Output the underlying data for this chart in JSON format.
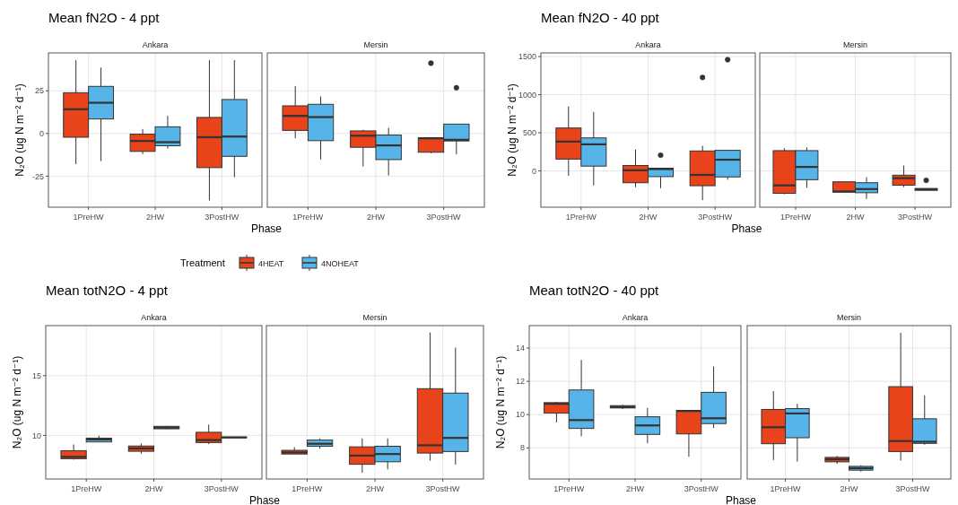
{
  "chart_data": [
    {
      "type": "box",
      "title": "Mean fN2O - 4 ppt",
      "subtitle": "Ankara",
      "xlabel": "Phase",
      "ylabel": "N₂O (ug N m⁻² d⁻¹)",
      "legend_title": "Treatment",
      "legend": "bottom",
      "grid": true,
      "categories": [
        "1PreHW",
        "2HW",
        "3PostHW"
      ],
      "ylim": [
        -43.2,
        47.2
      ],
      "yticks": [
        -25,
        0,
        25
      ],
      "series": [
        {
          "name": "4HEAT",
          "color": "#e8431a",
          "boxes": [
            {
              "low": -18.0,
              "q1": -2.2,
              "median": 14.2,
              "q3": 23.9,
              "high": 43.0
            },
            {
              "low": -12.1,
              "q1": -10.5,
              "median": -4.4,
              "q3": -0.4,
              "high": 2.6
            },
            {
              "low": -39.3,
              "q1": -20.0,
              "median": -2.2,
              "q3": 9.4,
              "high": 43.0
            }
          ]
        },
        {
          "name": "4NOHEAT",
          "color": "#56b4e9",
          "boxes": [
            {
              "low": -16.2,
              "q1": 8.5,
              "median": 18.0,
              "q3": 27.6,
              "high": 38.6
            },
            {
              "low": -8.8,
              "q1": -7.2,
              "median": -5.1,
              "q3": 3.9,
              "high": 10.3
            },
            {
              "low": -25.6,
              "q1": -13.4,
              "median": -1.8,
              "q3": 19.9,
              "high": 43.0
            }
          ]
        }
      ]
    },
    {
      "type": "box",
      "subtitle": "Mersin",
      "grid": true,
      "tick_labels": "x",
      "categories": [
        "1PreHW",
        "2HW",
        "3PostHW"
      ],
      "ylim": [
        -43.2,
        47.2
      ],
      "yticks": [
        -25,
        0,
        25
      ],
      "series": [
        {
          "color": "#e8431a",
          "boxes": [
            {
              "low": -2.8,
              "q1": 1.8,
              "median": 10.3,
              "q3": 16.2,
              "high": 27.8
            },
            {
              "low": -19.3,
              "q1": -8.1,
              "median": -1.3,
              "q3": 1.5,
              "high": 2.2
            },
            {
              "low": -11.6,
              "q1": -11.0,
              "median": -2.8,
              "q3": -2.6,
              "high": -2.6,
              "outliers": [
                41.2
              ]
            }
          ]
        },
        {
          "color": "#56b4e9",
          "boxes": [
            {
              "low": -15.3,
              "q1": -4.2,
              "median": 9.6,
              "q3": 17.1,
              "high": 21.7
            },
            {
              "low": -24.6,
              "q1": -15.3,
              "median": -7.0,
              "q3": -0.9,
              "high": 3.3
            },
            {
              "low": -12.1,
              "q1": -4.4,
              "median": -3.7,
              "q3": 5.5,
              "high": 5.5,
              "outliers": [
                26.8
              ]
            }
          ]
        }
      ]
    },
    {
      "type": "box",
      "title": "Mean fN2O - 40 ppt",
      "subtitle": "Ankara",
      "xlabel": "Phase",
      "ylabel": "N₂O (ug N m⁻² d⁻¹)",
      "grid": true,
      "categories": [
        "1PreHW",
        "2HW",
        "3PostHW"
      ],
      "ylim": [
        -476,
        1548
      ],
      "yticks": [
        0,
        500,
        1000,
        1500
      ],
      "series": [
        {
          "color": "#e8431a",
          "boxes": [
            {
              "low": -63,
              "q1": 155,
              "median": 385,
              "q3": 563,
              "high": 845
            },
            {
              "low": -214,
              "q1": -155,
              "median": 8,
              "q3": 71,
              "high": 282
            },
            {
              "low": -385,
              "q1": -194,
              "median": -52,
              "q3": 262,
              "high": 329,
              "outliers": [
                1226
              ]
            }
          ]
        },
        {
          "color": "#56b4e9",
          "boxes": [
            {
              "low": -190,
              "q1": 63,
              "median": 349,
              "q3": 433,
              "high": 774
            },
            {
              "low": -226,
              "q1": -75,
              "median": 24,
              "q3": 36,
              "high": 36,
              "outliers": [
                206
              ]
            },
            {
              "low": -115,
              "q1": -79,
              "median": 147,
              "q3": 270,
              "high": 270,
              "outliers": [
                1460
              ]
            }
          ]
        }
      ]
    },
    {
      "type": "box",
      "subtitle": "Mersin",
      "grid": true,
      "tick_labels": "x",
      "categories": [
        "1PreHW",
        "2HW",
        "3PostHW"
      ],
      "ylim": [
        -476,
        1548
      ],
      "yticks": [
        0,
        500,
        1000,
        1500
      ],
      "series": [
        {
          "color": "#e8431a",
          "boxes": [
            {
              "low": -306,
              "q1": -294,
              "median": -190,
              "q3": 266,
              "high": 298
            },
            {
              "low": -286,
              "q1": -278,
              "median": -270,
              "q3": -143,
              "high": -135
            },
            {
              "low": -214,
              "q1": -187,
              "median": -95,
              "q3": -56,
              "high": 71
            }
          ]
        },
        {
          "color": "#56b4e9",
          "boxes": [
            {
              "low": -222,
              "q1": -115,
              "median": 52,
              "q3": 266,
              "high": 310
            },
            {
              "low": -369,
              "q1": -286,
              "median": -238,
              "q3": -155,
              "high": -83
            },
            {
              "low": -258,
              "q1": -254,
              "median": -242,
              "q3": -230,
              "high": -230,
              "outliers": [
                -123
              ]
            }
          ]
        }
      ]
    },
    {
      "type": "box",
      "title": "Mean totN2O - 4 ppt",
      "subtitle": "Ankara",
      "xlabel": "Phase",
      "ylabel": "N₂O (ug N m⁻² d⁻¹)",
      "grid": true,
      "categories": [
        "1PreHW",
        "2HW",
        "3PostHW"
      ],
      "ylim": [
        6.35,
        19.19
      ],
      "yticks": [
        10,
        15
      ],
      "series": [
        {
          "color": "#e8431a",
          "boxes": [
            {
              "low": 7.97,
              "q1": 8.05,
              "median": 8.2,
              "q3": 8.72,
              "high": 9.24
            },
            {
              "low": 8.46,
              "q1": 8.67,
              "median": 8.91,
              "q3": 9.11,
              "high": 9.32
            },
            {
              "low": 9.27,
              "q1": 9.4,
              "median": 9.61,
              "q3": 10.26,
              "high": 10.91
            }
          ]
        },
        {
          "color": "#56b4e9",
          "boxes": [
            {
              "low": 9.43,
              "q1": 9.45,
              "median": 9.66,
              "q3": 9.77,
              "high": 9.97
            },
            {
              "low": 10.52,
              "q1": 10.55,
              "median": 10.65,
              "q3": 10.76,
              "high": 10.78
            },
            {
              "low": 9.79,
              "q1": 9.8,
              "median": 9.83,
              "q3": 9.86,
              "high": 9.87
            }
          ]
        }
      ]
    },
    {
      "type": "box",
      "subtitle": "Mersin",
      "grid": true,
      "tick_labels": "x",
      "categories": [
        "1PreHW",
        "2HW",
        "3PostHW"
      ],
      "ylim": [
        6.35,
        19.19
      ],
      "yticks": [
        10,
        15
      ],
      "series": [
        {
          "color": "#e8431a",
          "boxes": [
            {
              "low": 8.41,
              "q1": 8.44,
              "median": 8.57,
              "q3": 8.75,
              "high": 9.01
            },
            {
              "low": 6.88,
              "q1": 7.58,
              "median": 8.31,
              "q3": 9.04,
              "high": 9.74
            },
            {
              "low": 7.89,
              "q1": 8.52,
              "median": 9.17,
              "q3": 13.91,
              "high": 18.62
            }
          ]
        },
        {
          "color": "#56b4e9",
          "boxes": [
            {
              "low": 8.88,
              "q1": 9.09,
              "median": 9.3,
              "q3": 9.61,
              "high": 9.74
            },
            {
              "low": 7.16,
              "q1": 7.79,
              "median": 8.44,
              "q3": 9.09,
              "high": 9.74
            },
            {
              "low": 7.55,
              "q1": 8.65,
              "median": 9.79,
              "q3": 13.54,
              "high": 17.34
            }
          ]
        }
      ]
    },
    {
      "type": "box",
      "title": "Mean totN2O - 40 ppt",
      "subtitle": "Ankara",
      "xlabel": "Phase",
      "ylabel": "N₂O (ug N m⁻² d⁻¹)",
      "grid": true,
      "categories": [
        "1PreHW",
        "2HW",
        "3PostHW"
      ],
      "ylim": [
        6.13,
        15.35
      ],
      "yticks": [
        8,
        10,
        12,
        14
      ],
      "series": [
        {
          "color": "#e8431a",
          "boxes": [
            {
              "low": 9.53,
              "q1": 10.09,
              "median": 10.65,
              "q3": 10.72,
              "high": 10.76
            },
            {
              "low": 10.34,
              "q1": 10.4,
              "median": 10.45,
              "q3": 10.54,
              "high": 10.58
            },
            {
              "low": 7.47,
              "q1": 8.84,
              "median": 10.22,
              "q3": 10.25,
              "high": 10.25
            }
          ]
        },
        {
          "color": "#56b4e9",
          "boxes": [
            {
              "low": 8.7,
              "q1": 9.17,
              "median": 9.67,
              "q3": 11.48,
              "high": 13.29
            },
            {
              "low": 8.28,
              "q1": 8.81,
              "median": 9.35,
              "q3": 9.87,
              "high": 10.4
            },
            {
              "low": 9.19,
              "q1": 9.46,
              "median": 9.78,
              "q3": 11.34,
              "high": 12.89
            }
          ]
        }
      ]
    },
    {
      "type": "box",
      "subtitle": "Mersin",
      "grid": true,
      "tick_labels": "x",
      "categories": [
        "1PreHW",
        "2HW",
        "3PostHW"
      ],
      "ylim": [
        6.13,
        15.35
      ],
      "yticks": [
        8,
        10,
        12,
        14
      ],
      "series": [
        {
          "color": "#e8431a",
          "boxes": [
            {
              "low": 7.27,
              "q1": 8.25,
              "median": 9.24,
              "q3": 10.31,
              "high": 11.41
            },
            {
              "low": 7.04,
              "q1": 7.16,
              "median": 7.31,
              "q3": 7.43,
              "high": 7.52
            },
            {
              "low": 7.23,
              "q1": 7.78,
              "median": 8.41,
              "q3": 11.68,
              "high": 14.92
            }
          ]
        },
        {
          "color": "#56b4e9",
          "boxes": [
            {
              "low": 7.18,
              "q1": 8.61,
              "median": 10.07,
              "q3": 10.36,
              "high": 10.65
            },
            {
              "low": 6.57,
              "q1": 6.66,
              "median": 6.78,
              "q3": 6.89,
              "high": 6.96
            },
            {
              "low": 8.19,
              "q1": 8.27,
              "median": 8.37,
              "q3": 9.75,
              "high": 11.16
            }
          ]
        }
      ]
    }
  ]
}
